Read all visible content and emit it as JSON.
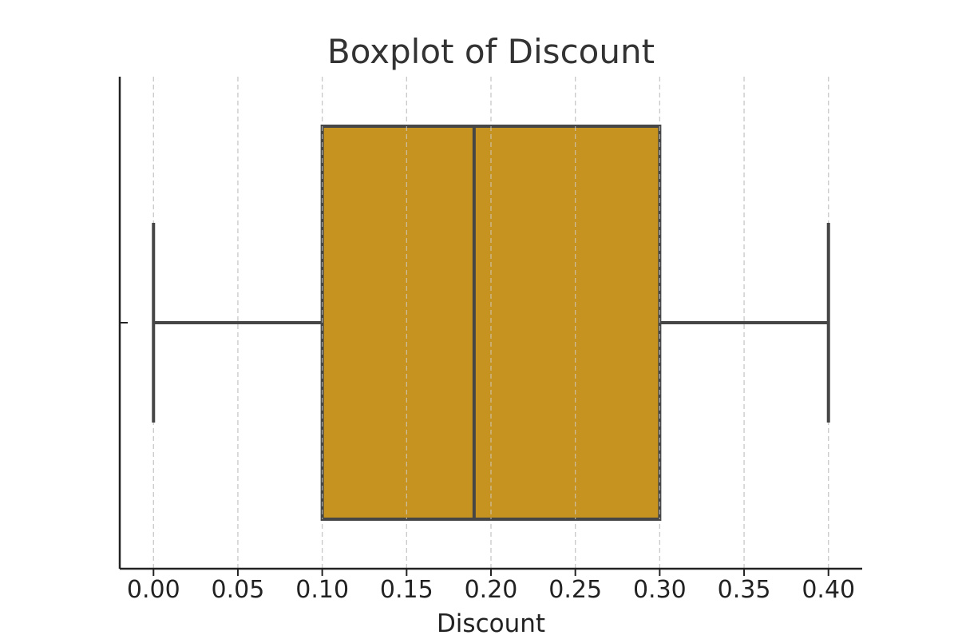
{
  "chart_data": {
    "type": "box",
    "title": "Boxplot of Discount",
    "xlabel": "Discount",
    "ylabel": "",
    "orientation": "horizontal",
    "xlim": [
      -0.02,
      0.42
    ],
    "xticks": [
      0.0,
      0.05,
      0.1,
      0.15,
      0.2,
      0.25,
      0.3,
      0.35,
      0.4
    ],
    "xtick_labels": [
      "0.00",
      "0.05",
      "0.10",
      "0.15",
      "0.20",
      "0.25",
      "0.30",
      "0.35",
      "0.40"
    ],
    "grid": {
      "x": true,
      "y": false,
      "style": "dashed"
    },
    "box": {
      "min": 0.0,
      "q1": 0.1,
      "median": 0.19,
      "q3": 0.3,
      "max": 0.4
    },
    "colors": {
      "box_fill": "#c69320",
      "box_edge": "#464646",
      "grid": "#c8c8c8",
      "axis": "#222222",
      "title": "#333333"
    }
  }
}
